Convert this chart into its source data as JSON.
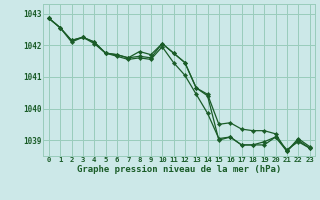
{
  "background_color": "#cce8e8",
  "grid_color": "#99ccbb",
  "line_color": "#1a5c28",
  "marker_color": "#1a5c28",
  "xlabel": "Graphe pression niveau de la mer (hPa)",
  "ylim": [
    1038.5,
    1043.3
  ],
  "xlim": [
    -0.5,
    23.5
  ],
  "yticks": [
    1039,
    1040,
    1041,
    1042,
    1043
  ],
  "xticks": [
    0,
    1,
    2,
    3,
    4,
    5,
    6,
    7,
    8,
    9,
    10,
    11,
    12,
    13,
    14,
    15,
    16,
    17,
    18,
    19,
    20,
    21,
    22,
    23
  ],
  "series": [
    [
      1042.85,
      1042.55,
      1042.15,
      1042.25,
      1042.05,
      1041.75,
      1041.65,
      1041.55,
      1041.6,
      1041.55,
      1041.95,
      1041.45,
      1041.05,
      1040.45,
      1039.85,
      1039.05,
      1039.1,
      1038.85,
      1038.85,
      1038.95,
      1039.1,
      1038.7,
      1038.95,
      1038.75
    ],
    [
      1042.85,
      1042.55,
      1042.15,
      1042.25,
      1042.1,
      1041.75,
      1041.7,
      1041.6,
      1041.8,
      1041.7,
      1042.05,
      1041.75,
      1041.45,
      1040.65,
      1040.45,
      1039.5,
      1039.55,
      1039.35,
      1039.3,
      1039.3,
      1039.2,
      1038.65,
      1039.05,
      1038.8
    ],
    [
      1042.85,
      1042.55,
      1042.1,
      1042.25,
      1042.1,
      1041.75,
      1041.7,
      1041.6,
      1041.65,
      1041.6,
      1042.05,
      1041.75,
      1041.45,
      1040.65,
      1040.4,
      1039.0,
      1039.1,
      1038.85,
      1038.85,
      1038.85,
      1039.1,
      1038.65,
      1039.0,
      1038.75
    ]
  ],
  "ylabel_fontsize": 5.5,
  "xlabel_fontsize": 6.5,
  "tick_fontsize": 5.2,
  "linewidth": 0.9,
  "markersize": 2.2
}
